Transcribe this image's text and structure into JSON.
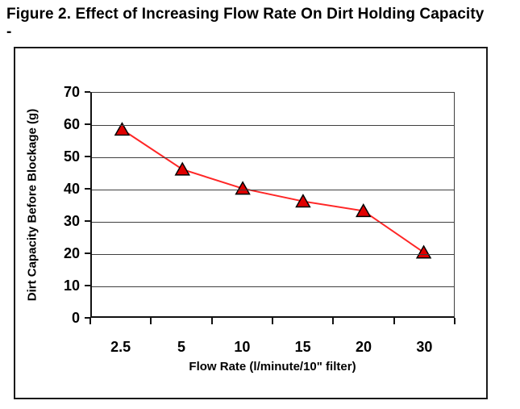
{
  "figure": {
    "title": "Figure 2. Effect of Increasing Flow Rate On Dirt Holding Capacity",
    "title_line2": "-"
  },
  "chart_data": {
    "type": "line",
    "categories": [
      "2.5",
      "5",
      "10",
      "15",
      "20",
      "30"
    ],
    "series": [
      {
        "name": "Dirt Holding Capacity",
        "values": [
          58.5,
          46,
          40,
          36,
          33,
          20
        ]
      }
    ],
    "title": "Figure 2. Effect of Increasing Flow Rate On Dirt Holding Capacity",
    "xlabel": "Flow Rate (l/minute/10\" filter)",
    "ylabel": "Dirt Capacity Before Blockage (g)",
    "ylim": [
      0,
      70
    ],
    "y_ticks": [
      0,
      10,
      20,
      30,
      40,
      50,
      60,
      70
    ],
    "grid": "horizontal",
    "legend": "none",
    "line_color": "#ff2626",
    "marker": "triangle-up",
    "marker_fill": "#e00000",
    "marker_stroke": "#000000"
  }
}
